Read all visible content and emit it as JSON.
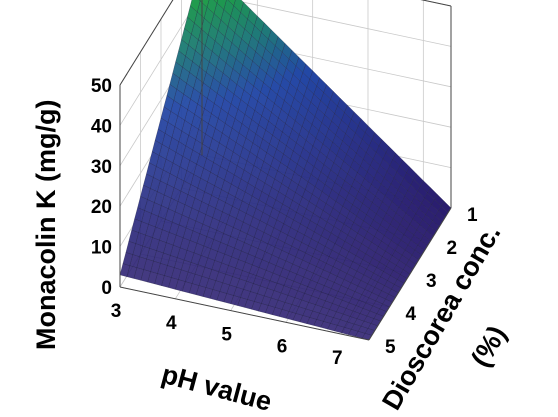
{
  "chart_data": {
    "type": "surface3d",
    "title": "",
    "zlabel": "Monacolin K (mg/g)",
    "xlabel": "pH value",
    "ylabel_line1": "Dioscorea conc.",
    "ylabel_line2": "(%)",
    "x_ticks": [
      "3",
      "4",
      "5",
      "6",
      "7"
    ],
    "y_ticks": [
      "1",
      "2",
      "3",
      "4",
      "5"
    ],
    "z_ticks": [
      "0",
      "10",
      "20",
      "30",
      "40",
      "50"
    ],
    "xlim": [
      3,
      7.5
    ],
    "ylim": [
      1,
      5
    ],
    "zlim": [
      0,
      50
    ],
    "grid": true,
    "corner_values": [
      {
        "x": 3,
        "y": 1,
        "z": 48
      },
      {
        "x": 7.5,
        "y": 1,
        "z": 0
      },
      {
        "x": 3,
        "y": 5,
        "z": 3
      },
      {
        "x": 7.5,
        "y": 5,
        "z": 0
      }
    ],
    "colormap": [
      "#2a1d6e",
      "#27358e",
      "#2348a6",
      "#1f7a78",
      "#1e9a4c",
      "#2bb040"
    ]
  }
}
